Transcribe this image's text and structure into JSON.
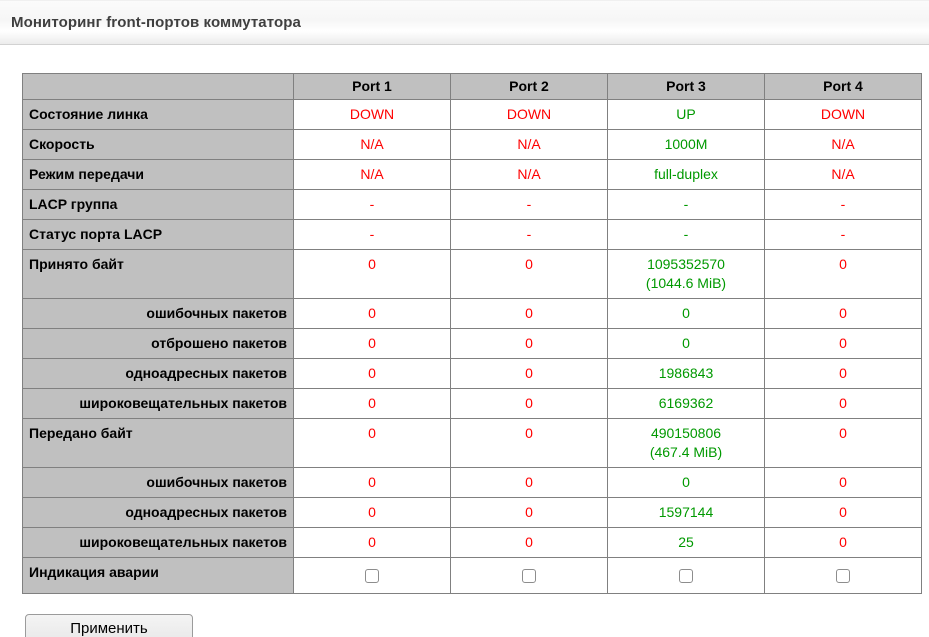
{
  "header": {
    "title": "Мониторинг front-портов коммутатора"
  },
  "table": {
    "columns": [
      "Port 1",
      "Port 2",
      "Port 3",
      "Port 4"
    ],
    "port_status": [
      "down",
      "down",
      "up",
      "down"
    ],
    "rows": [
      {
        "label": "Состояние линка",
        "indent": false,
        "type": "text",
        "values": [
          "DOWN",
          "DOWN",
          "UP",
          "DOWN"
        ]
      },
      {
        "label": "Скорость",
        "indent": false,
        "type": "text",
        "values": [
          "N/A",
          "N/A",
          "1000M",
          "N/A"
        ]
      },
      {
        "label": "Режим передачи",
        "indent": false,
        "type": "text",
        "values": [
          "N/A",
          "N/A",
          "full-duplex",
          "N/A"
        ]
      },
      {
        "label": "LACP группа",
        "indent": false,
        "type": "text",
        "values": [
          "-",
          "-",
          "-",
          "-"
        ]
      },
      {
        "label": "Статус порта LACP",
        "indent": false,
        "type": "text",
        "values": [
          "-",
          "-",
          "-",
          "-"
        ]
      },
      {
        "label": "Принято байт",
        "indent": false,
        "type": "text",
        "values": [
          "0",
          "0",
          "1095352570\n(1044.6 MiB)",
          "0"
        ]
      },
      {
        "label": "ошибочных пакетов",
        "indent": true,
        "type": "text",
        "values": [
          "0",
          "0",
          "0",
          "0"
        ]
      },
      {
        "label": "отброшено пакетов",
        "indent": true,
        "type": "text",
        "values": [
          "0",
          "0",
          "0",
          "0"
        ]
      },
      {
        "label": "одноадресных пакетов",
        "indent": true,
        "type": "text",
        "values": [
          "0",
          "0",
          "1986843",
          "0"
        ]
      },
      {
        "label": "широковещательных пакетов",
        "indent": true,
        "type": "text",
        "values": [
          "0",
          "0",
          "6169362",
          "0"
        ]
      },
      {
        "label": "Передано байт",
        "indent": false,
        "type": "text",
        "values": [
          "0",
          "0",
          "490150806\n(467.4 MiB)",
          "0"
        ]
      },
      {
        "label": "ошибочных пакетов",
        "indent": true,
        "type": "text",
        "values": [
          "0",
          "0",
          "0",
          "0"
        ]
      },
      {
        "label": "одноадресных пакетов",
        "indent": true,
        "type": "text",
        "values": [
          "0",
          "0",
          "1597144",
          "0"
        ]
      },
      {
        "label": "широковещательных пакетов",
        "indent": true,
        "type": "text",
        "values": [
          "0",
          "0",
          "25",
          "0"
        ]
      },
      {
        "label": "Индикация аварии",
        "indent": false,
        "type": "checkbox",
        "checked": [
          false,
          false,
          false,
          false
        ]
      }
    ]
  },
  "colors": {
    "status_up": "#009900",
    "status_down": "#ff0000",
    "label_cell_bg": "#c0c0c0"
  },
  "actions": {
    "apply_label": "Применить"
  }
}
